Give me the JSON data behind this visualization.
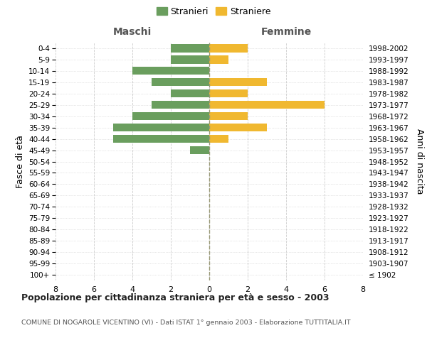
{
  "age_groups": [
    "100+",
    "95-99",
    "90-94",
    "85-89",
    "80-84",
    "75-79",
    "70-74",
    "65-69",
    "60-64",
    "55-59",
    "50-54",
    "45-49",
    "40-44",
    "35-39",
    "30-34",
    "25-29",
    "20-24",
    "15-19",
    "10-14",
    "5-9",
    "0-4"
  ],
  "birth_years": [
    "≤ 1902",
    "1903-1907",
    "1908-1912",
    "1913-1917",
    "1918-1922",
    "1923-1927",
    "1928-1932",
    "1933-1937",
    "1938-1942",
    "1943-1947",
    "1948-1952",
    "1953-1957",
    "1958-1962",
    "1963-1967",
    "1968-1972",
    "1973-1977",
    "1978-1982",
    "1983-1987",
    "1988-1992",
    "1993-1997",
    "1998-2002"
  ],
  "males": [
    0,
    0,
    0,
    0,
    0,
    0,
    0,
    0,
    0,
    0,
    0,
    1,
    5,
    5,
    4,
    3,
    2,
    3,
    4,
    2,
    2
  ],
  "females": [
    0,
    0,
    0,
    0,
    0,
    0,
    0,
    0,
    0,
    0,
    0,
    0,
    1,
    3,
    2,
    6,
    2,
    3,
    0,
    1,
    2
  ],
  "male_color": "#6a9e5e",
  "female_color": "#f0b830",
  "background_color": "#ffffff",
  "grid_color": "#cccccc",
  "title": "Popolazione per cittadinanza straniera per età e sesso - 2003",
  "subtitle": "COMUNE DI NOGAROLE VICENTINO (VI) - Dati ISTAT 1° gennaio 2003 - Elaborazione TUTTITALIA.IT",
  "ylabel_left": "Fasce di età",
  "ylabel_right": "Anni di nascita",
  "xlabel_left": "Maschi",
  "xlabel_right": "Femmine",
  "legend_male": "Stranieri",
  "legend_female": "Straniere",
  "xlim": 8
}
